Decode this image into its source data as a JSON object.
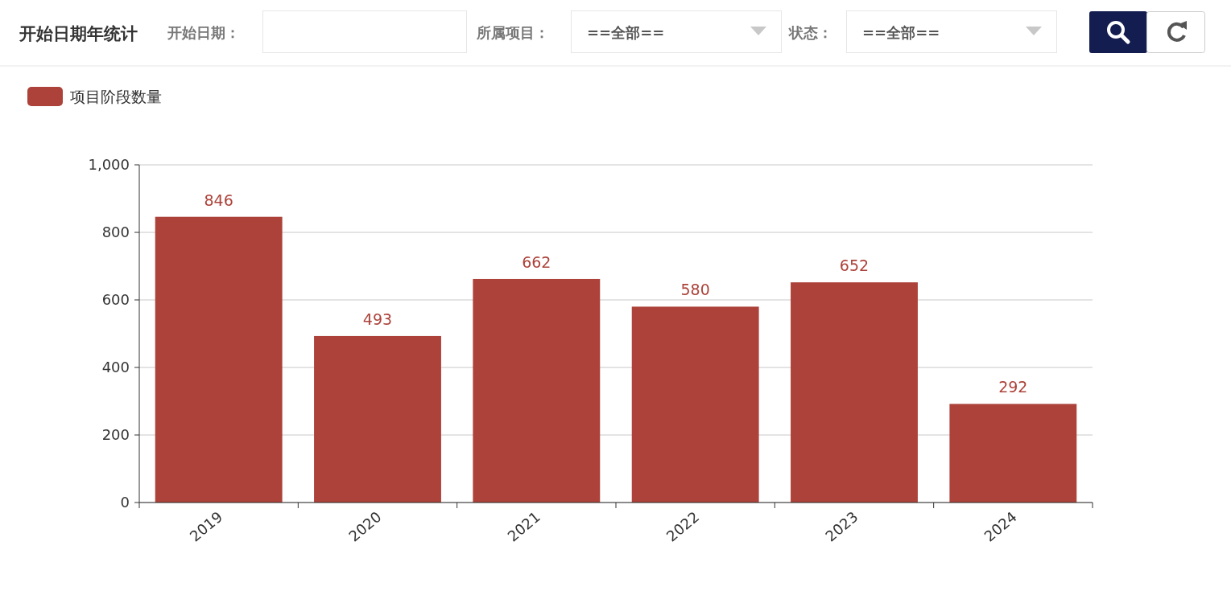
{
  "chart_data": {
    "type": "bar",
    "title": "开始日期年统计",
    "annotations": [
      "开始日期：",
      "所属项目：",
      "==全部==",
      "状态：",
      "==全部=="
    ],
    "categories": [
      "2019",
      "2020",
      "2021",
      "2022",
      "2023",
      "2024"
    ],
    "series": [
      {
        "name": "项目阶段数量",
        "color": "#ac4239",
        "values": [
          846,
          493,
          662,
          580,
          652,
          292
        ]
      }
    ],
    "ylim": [
      0,
      1000
    ],
    "yticks": [
      0,
      200,
      400,
      600,
      800,
      {
        "value": 1000,
        "label": "1,000"
      }
    ],
    "grid": "y",
    "legend": "top left",
    "data_labels": true
  }
}
